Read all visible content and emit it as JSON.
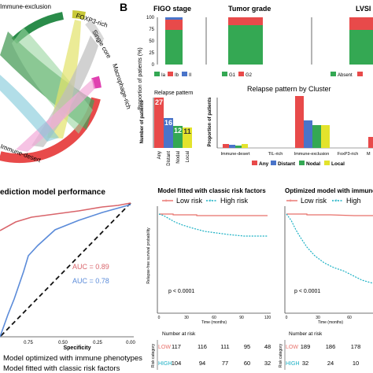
{
  "panel_b_label": "B",
  "chord": {
    "clusters": [
      "Immune-exclusion",
      "FOXP3-rich",
      "Single core",
      "Macrophage-rich",
      "Immune-desert"
    ]
  },
  "figo": {
    "title": "FIGO stage",
    "ylabel": "Proportion of patients (%)",
    "yticks": [
      "100",
      "75",
      "50",
      "25",
      "0"
    ],
    "legend": [
      "Ia",
      "Ib",
      "II"
    ],
    "colors": [
      "#34a853",
      "#e84a4a",
      "#4a74c9"
    ]
  },
  "grade": {
    "title": "Tumor grade",
    "legend": [
      "G1",
      "G2"
    ]
  },
  "lvsi": {
    "title": "LVSI",
    "legend": [
      "Absent"
    ]
  },
  "relapse": {
    "title": "Relapse pattern",
    "ylabel": "Number of patients",
    "categories": [
      "Any",
      "Distant",
      "Nodal",
      "Local"
    ],
    "values": [
      "27",
      "16",
      "12",
      "11"
    ]
  },
  "cluster_relapse": {
    "title": "Relapse pattern by Cluster",
    "ylabel": "Proportion of patients",
    "categories": [
      "Immune-desert",
      "TIL-rich",
      "Immune-exclusion",
      "FoxP3-rich",
      "M"
    ],
    "legend": [
      "Any",
      "Distant",
      "Nodal",
      "Local"
    ]
  },
  "roc": {
    "title": "ediction model performance",
    "auc_optimized": "AUC = 0.89",
    "auc_classic": "AUC = 0.78",
    "xticks": [
      "0.75",
      "0.50",
      "0.25",
      "0.00"
    ],
    "xlabel": "Specificity",
    "legend": [
      "Model optimized with immune phenotypes",
      "Model fitted with classic risk factors"
    ]
  },
  "km_classic": {
    "title": "Model fitted with classic risk factors",
    "legend": [
      "Low risk",
      "High risk"
    ],
    "ylabel": "Relapse-free survival probability",
    "pvalue": "p < 0.0001",
    "xticks": [
      "0",
      "30",
      "60",
      "90",
      "120"
    ],
    "xlabel": "Time (months)",
    "risk_title": "Number at risk",
    "risk_rows": [
      {
        "label": "LOW",
        "values": [
          "117",
          "116",
          "111",
          "95",
          "48"
        ]
      },
      {
        "label": "HIGH",
        "values": [
          "104",
          "94",
          "77",
          "60",
          "32"
        ]
      }
    ],
    "risk_ylabel": "Risk category"
  },
  "km_immune": {
    "title": "Optimized model with immune p",
    "legend": [
      "Low risk",
      "High"
    ],
    "pvalue": "p < 0.0001",
    "xticks": [
      "0",
      "30",
      "60"
    ],
    "xlabel": "Time (months)",
    "risk_title": "Number at risk",
    "risk_rows": [
      {
        "label": "LOW",
        "values": [
          "189",
          "186",
          "178"
        ]
      },
      {
        "label": "HIGH",
        "values": [
          "32",
          "24",
          "10"
        ]
      }
    ],
    "risk_ylabel": "Risk category"
  },
  "colors": {
    "red": "#e84a4a",
    "green": "#34a853",
    "blue": "#4a74c9",
    "yellow": "#e3e32c",
    "teal": "#1ab0c4",
    "salmon": "#e8706a"
  }
}
